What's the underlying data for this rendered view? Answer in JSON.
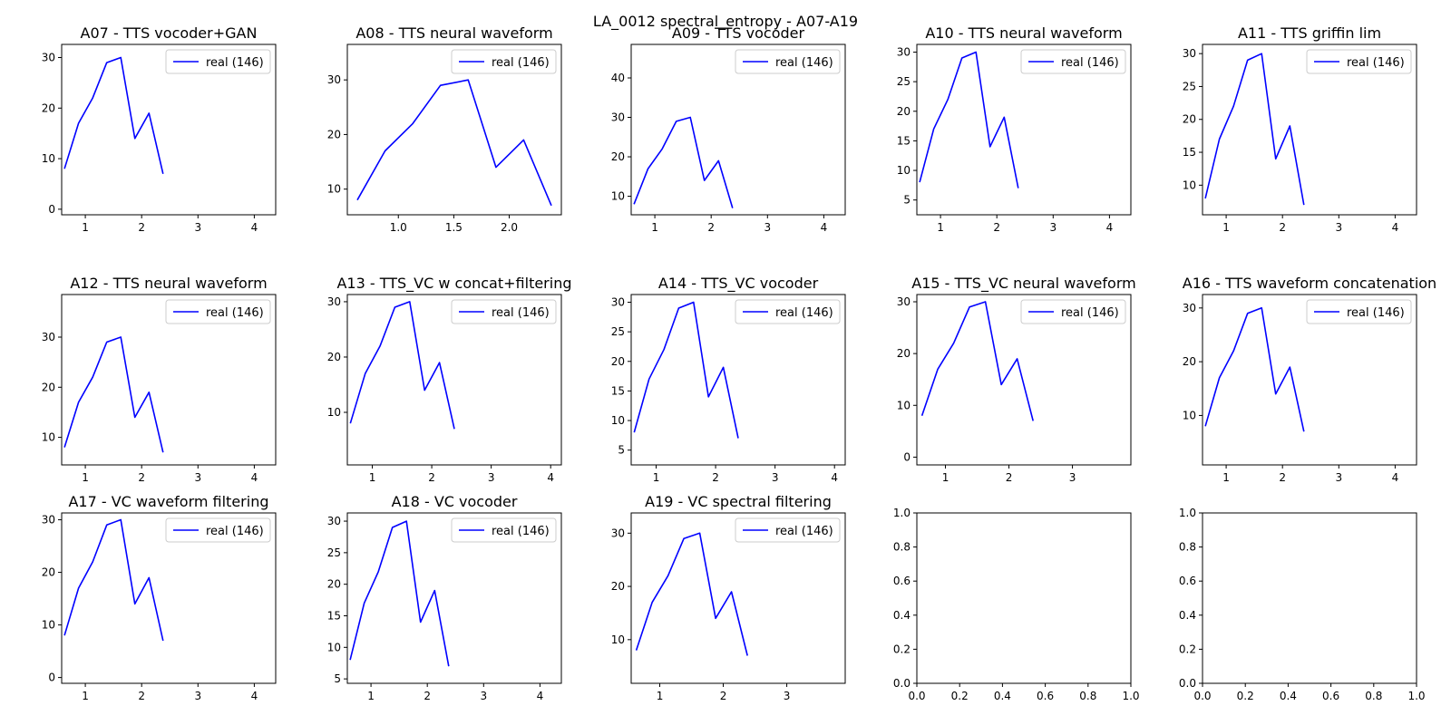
{
  "figure": {
    "title": "LA_0012 spectral_entropy - A07-A19"
  },
  "colors": {
    "series": "#0000ff",
    "axes": "#000000",
    "legend_border": "#cccccc",
    "background": "#ffffff"
  },
  "chart_data": [
    {
      "type": "line",
      "title": "A07 - TTS vocoder+GAN",
      "xlim": [
        0.58,
        4.38
      ],
      "ylim": [
        -1.1,
        32.6
      ],
      "xticks": [
        1,
        2,
        3,
        4
      ],
      "xticklabels": [
        "1",
        "2",
        "3",
        "4"
      ],
      "yticks": [
        0,
        10,
        20,
        30
      ],
      "yticklabels": [
        "0",
        "10",
        "20",
        "30"
      ],
      "legend_loc": "top-right",
      "series": [
        {
          "name": "real (146)",
          "x": [
            0.63,
            0.88,
            1.13,
            1.38,
            1.63,
            1.88,
            2.13,
            2.38
          ],
          "y": [
            8,
            17,
            22,
            29,
            30,
            14,
            19,
            7
          ]
        }
      ]
    },
    {
      "type": "line",
      "title": "A08 - TTS neural waveform",
      "xlim": [
        0.54,
        2.47
      ],
      "ylim": [
        5.3,
        36.5
      ],
      "xticks": [
        1.0,
        1.5,
        2.0
      ],
      "xticklabels": [
        "1.0",
        "1.5",
        "2.0"
      ],
      "yticks": [
        10,
        20,
        30
      ],
      "yticklabels": [
        "10",
        "20",
        "30"
      ],
      "legend_loc": "top-right",
      "series": [
        {
          "name": "real (146)",
          "x": [
            0.63,
            0.88,
            1.13,
            1.38,
            1.63,
            1.88,
            2.13,
            2.38
          ],
          "y": [
            8,
            17,
            22,
            29,
            30,
            14,
            19,
            7
          ]
        }
      ]
    },
    {
      "type": "line",
      "title": "A09 - TTS vocoder",
      "xlim": [
        0.58,
        4.38
      ],
      "ylim": [
        5.3,
        48.5
      ],
      "xticks": [
        1,
        2,
        3,
        4
      ],
      "xticklabels": [
        "1",
        "2",
        "3",
        "4"
      ],
      "yticks": [
        10,
        20,
        30,
        40
      ],
      "yticklabels": [
        "10",
        "20",
        "30",
        "40"
      ],
      "legend_loc": "top-right",
      "series": [
        {
          "name": "real (146)",
          "x": [
            0.63,
            0.88,
            1.13,
            1.38,
            1.63,
            1.88,
            2.13,
            2.38
          ],
          "y": [
            8,
            17,
            22,
            29,
            30,
            14,
            19,
            7
          ]
        }
      ]
    },
    {
      "type": "line",
      "title": "A10 - TTS neural waveform",
      "xlim": [
        0.58,
        4.38
      ],
      "ylim": [
        2.5,
        31.3
      ],
      "xticks": [
        1,
        2,
        3,
        4
      ],
      "xticklabels": [
        "1",
        "2",
        "3",
        "4"
      ],
      "yticks": [
        5,
        10,
        15,
        20,
        25,
        30
      ],
      "yticklabels": [
        "5",
        "10",
        "15",
        "20",
        "25",
        "30"
      ],
      "legend_loc": "top-right",
      "series": [
        {
          "name": "real (146)",
          "x": [
            0.63,
            0.88,
            1.13,
            1.38,
            1.63,
            1.88,
            2.13,
            2.38
          ],
          "y": [
            8,
            17,
            22,
            29,
            30,
            14,
            19,
            7
          ]
        }
      ]
    },
    {
      "type": "line",
      "title": "A11 - TTS griffin lim",
      "xlim": [
        0.58,
        4.38
      ],
      "ylim": [
        5.5,
        31.4
      ],
      "xticks": [
        1,
        2,
        3,
        4
      ],
      "xticklabels": [
        "1",
        "2",
        "3",
        "4"
      ],
      "yticks": [
        10,
        15,
        20,
        25,
        30
      ],
      "yticklabels": [
        "10",
        "15",
        "20",
        "25",
        "30"
      ],
      "legend_loc": "top-right",
      "series": [
        {
          "name": "real (146)",
          "x": [
            0.63,
            0.88,
            1.13,
            1.38,
            1.63,
            1.88,
            2.13,
            2.38
          ],
          "y": [
            8,
            17,
            22,
            29,
            30,
            14,
            19,
            7
          ]
        }
      ]
    },
    {
      "type": "line",
      "title": "A12 - TTS neural waveform",
      "xlim": [
        0.58,
        4.38
      ],
      "ylim": [
        4.5,
        38.5
      ],
      "xticks": [
        1,
        2,
        3,
        4
      ],
      "xticklabels": [
        "1",
        "2",
        "3",
        "4"
      ],
      "yticks": [
        10,
        20,
        30
      ],
      "yticklabels": [
        "10",
        "20",
        "30"
      ],
      "legend_loc": "top-right",
      "series": [
        {
          "name": "real (146)",
          "x": [
            0.63,
            0.88,
            1.13,
            1.38,
            1.63,
            1.88,
            2.13,
            2.38
          ],
          "y": [
            8,
            17,
            22,
            29,
            30,
            14,
            19,
            7
          ]
        }
      ]
    },
    {
      "type": "line",
      "title": "A13 - TTS_VC w concat+filtering",
      "xlim": [
        0.58,
        4.18
      ],
      "ylim": [
        0.5,
        31.3
      ],
      "xticks": [
        1,
        2,
        3,
        4
      ],
      "xticklabels": [
        "1",
        "2",
        "3",
        "4"
      ],
      "yticks": [
        10,
        20,
        30
      ],
      "yticklabels": [
        "10",
        "20",
        "30"
      ],
      "legend_loc": "top-right",
      "series": [
        {
          "name": "real (146)",
          "x": [
            0.63,
            0.88,
            1.13,
            1.38,
            1.63,
            1.88,
            2.13,
            2.38
          ],
          "y": [
            8,
            17,
            22,
            29,
            30,
            14,
            19,
            7
          ]
        }
      ]
    },
    {
      "type": "line",
      "title": "A14 - TTS_VC vocoder",
      "xlim": [
        0.58,
        4.18
      ],
      "ylim": [
        2.5,
        31.3
      ],
      "xticks": [
        1,
        2,
        3,
        4
      ],
      "xticklabels": [
        "1",
        "2",
        "3",
        "4"
      ],
      "yticks": [
        5,
        10,
        15,
        20,
        25,
        30
      ],
      "yticklabels": [
        "5",
        "10",
        "15",
        "20",
        "25",
        "30"
      ],
      "legend_loc": "top-right",
      "series": [
        {
          "name": "real (146)",
          "x": [
            0.63,
            0.88,
            1.13,
            1.38,
            1.63,
            1.88,
            2.13,
            2.38
          ],
          "y": [
            8,
            17,
            22,
            29,
            30,
            14,
            19,
            7
          ]
        }
      ]
    },
    {
      "type": "line",
      "title": "A15 - TTS_VC neural waveform",
      "xlim": [
        0.55,
        3.92
      ],
      "ylim": [
        -1.5,
        31.4
      ],
      "xticks": [
        1,
        2,
        3
      ],
      "xticklabels": [
        "1",
        "2",
        "3"
      ],
      "yticks": [
        0,
        10,
        20,
        30
      ],
      "yticklabels": [
        "0",
        "10",
        "20",
        "30"
      ],
      "legend_loc": "top-right",
      "series": [
        {
          "name": "real (146)",
          "x": [
            0.63,
            0.88,
            1.13,
            1.38,
            1.63,
            1.88,
            2.13,
            2.38
          ],
          "y": [
            8,
            17,
            22,
            29,
            30,
            14,
            19,
            7
          ]
        }
      ]
    },
    {
      "type": "line",
      "title": "A16 - TTS waveform concatenation",
      "xlim": [
        0.58,
        4.38
      ],
      "ylim": [
        0.8,
        32.5
      ],
      "xticks": [
        1,
        2,
        3,
        4
      ],
      "xticklabels": [
        "1",
        "2",
        "3",
        "4"
      ],
      "yticks": [
        10,
        20,
        30
      ],
      "yticklabels": [
        "10",
        "20",
        "30"
      ],
      "legend_loc": "top-right",
      "series": [
        {
          "name": "real (146)",
          "x": [
            0.63,
            0.88,
            1.13,
            1.38,
            1.63,
            1.88,
            2.13,
            2.38
          ],
          "y": [
            8,
            17,
            22,
            29,
            30,
            14,
            19,
            7
          ]
        }
      ]
    },
    {
      "type": "line",
      "title": "A17 - VC waveform filtering",
      "xlim": [
        0.58,
        4.38
      ],
      "ylim": [
        -1.1,
        31.3
      ],
      "xticks": [
        1,
        2,
        3,
        4
      ],
      "xticklabels": [
        "1",
        "2",
        "3",
        "4"
      ],
      "yticks": [
        0,
        10,
        20,
        30
      ],
      "yticklabels": [
        "0",
        "10",
        "20",
        "30"
      ],
      "legend_loc": "top-right",
      "series": [
        {
          "name": "real (146)",
          "x": [
            0.63,
            0.88,
            1.13,
            1.38,
            1.63,
            1.88,
            2.13,
            2.38
          ],
          "y": [
            8,
            17,
            22,
            29,
            30,
            14,
            19,
            7
          ]
        }
      ]
    },
    {
      "type": "line",
      "title": "A18 - VC vocoder",
      "xlim": [
        0.58,
        4.38
      ],
      "ylim": [
        4.3,
        31.3
      ],
      "xticks": [
        1,
        2,
        3,
        4
      ],
      "xticklabels": [
        "1",
        "2",
        "3",
        "4"
      ],
      "yticks": [
        5,
        10,
        15,
        20,
        25,
        30
      ],
      "yticklabels": [
        "5",
        "10",
        "15",
        "20",
        "25",
        "30"
      ],
      "legend_loc": "top-right",
      "series": [
        {
          "name": "real (146)",
          "x": [
            0.63,
            0.88,
            1.13,
            1.38,
            1.63,
            1.88,
            2.13,
            2.38
          ],
          "y": [
            8,
            17,
            22,
            29,
            30,
            14,
            19,
            7
          ]
        }
      ]
    },
    {
      "type": "line",
      "title": "A19 - VC spectral filtering",
      "xlim": [
        0.55,
        3.92
      ],
      "ylim": [
        1.8,
        33.8
      ],
      "xticks": [
        1,
        2,
        3
      ],
      "xticklabels": [
        "1",
        "2",
        "3"
      ],
      "yticks": [
        10,
        20,
        30
      ],
      "yticklabels": [
        "10",
        "20",
        "30"
      ],
      "legend_loc": "top-right",
      "series": [
        {
          "name": "real (146)",
          "x": [
            0.63,
            0.88,
            1.13,
            1.38,
            1.63,
            1.88,
            2.13,
            2.38
          ],
          "y": [
            8,
            17,
            22,
            29,
            30,
            14,
            19,
            7
          ]
        }
      ]
    },
    {
      "type": "line",
      "title": "",
      "xlim": [
        0,
        1
      ],
      "ylim": [
        0,
        1
      ],
      "xticks": [
        0,
        0.2,
        0.4,
        0.6,
        0.8,
        1.0
      ],
      "xticklabels": [
        "0.0",
        "0.2",
        "0.4",
        "0.6",
        "0.8",
        "1.0"
      ],
      "yticks": [
        0,
        0.2,
        0.4,
        0.6,
        0.8,
        1.0
      ],
      "yticklabels": [
        "0.0",
        "0.2",
        "0.4",
        "0.6",
        "0.8",
        "1.0"
      ],
      "series": []
    },
    {
      "type": "line",
      "title": "",
      "xlim": [
        0,
        1
      ],
      "ylim": [
        0,
        1
      ],
      "xticks": [
        0,
        0.2,
        0.4,
        0.6,
        0.8,
        1.0
      ],
      "xticklabels": [
        "0.0",
        "0.2",
        "0.4",
        "0.6",
        "0.8",
        "1.0"
      ],
      "yticks": [
        0,
        0.2,
        0.4,
        0.6,
        0.8,
        1.0
      ],
      "yticklabels": [
        "0.0",
        "0.2",
        "0.4",
        "0.6",
        "0.8",
        "1.0"
      ],
      "series": []
    }
  ]
}
